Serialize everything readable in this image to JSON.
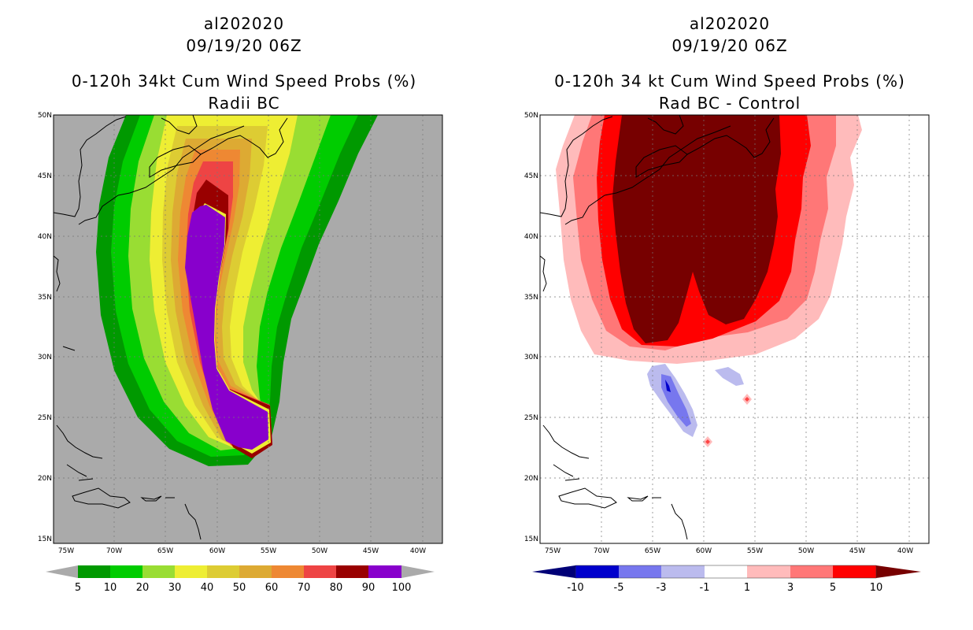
{
  "left_panel": {
    "title_line1": "al202020",
    "title_line2": "09/19/20 06Z",
    "title_line3": "0-120h 34kt Cum Wind Speed Probs (%)",
    "title_line4": "Radii BC",
    "lat_labels": [
      "50N",
      "45N",
      "40N",
      "35N",
      "30N",
      "25N",
      "20N",
      "15N"
    ],
    "lon_labels": [
      "75W",
      "70W",
      "65W",
      "60W",
      "55W",
      "50W",
      "45W",
      "40W"
    ],
    "colorbar": {
      "labels": [
        "5",
        "10",
        "20",
        "30",
        "40",
        "50",
        "60",
        "70",
        "80",
        "90",
        "100"
      ],
      "colors": [
        "#009900",
        "#00cc00",
        "#99dd33",
        "#eeee33",
        "#ddcc33",
        "#ddaa33",
        "#ee8833",
        "#ee4444",
        "#990000",
        "#8800cc"
      ]
    }
  },
  "right_panel": {
    "title_line1": "al202020",
    "title_line2": "09/19/20 06Z",
    "title_line3": "0-120h 34 kt Cum Wind Speed Probs (%)",
    "title_line4": "Rad BC - Control",
    "lat_labels": [
      "50N",
      "45N",
      "40N",
      "35N",
      "30N",
      "25N",
      "20N",
      "15N"
    ],
    "lon_labels": [
      "75W",
      "70W",
      "65W",
      "60W",
      "55W",
      "50W",
      "45W",
      "40W"
    ],
    "colorbar": {
      "labels": [
        "-10",
        "-5",
        "-3",
        "-1",
        "1",
        "3",
        "5",
        "10"
      ],
      "colors": [
        "#0000cc",
        "#7777ee",
        "#bbbbee",
        "#ffffff",
        "#ffbbbb",
        "#ff7777",
        "#ff0000",
        "#770000"
      ]
    }
  }
}
